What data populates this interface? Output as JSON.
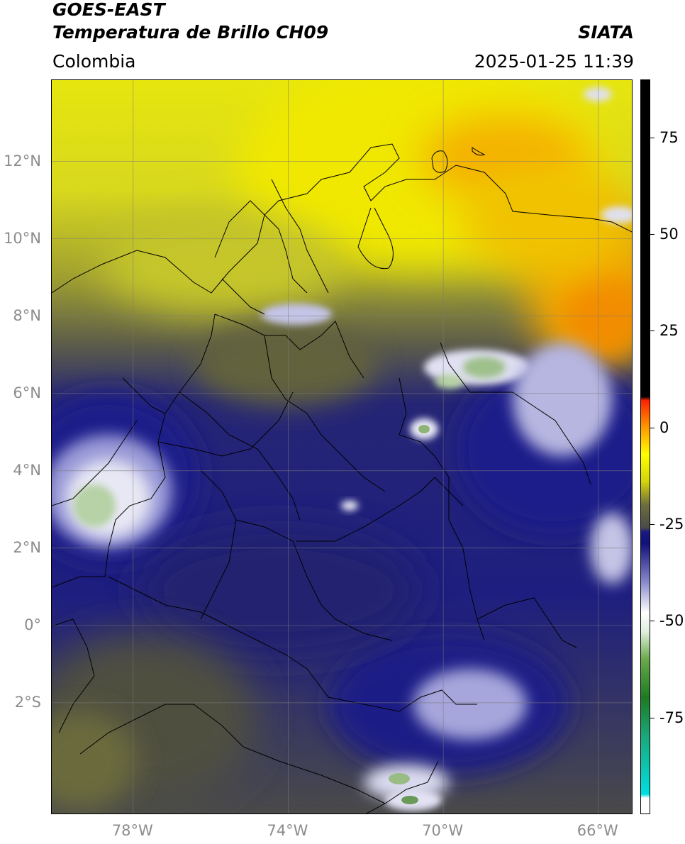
{
  "header": {
    "satellite": "GOES-EAST",
    "product": "Temperatura de Brillo CH09",
    "brand": "SIATA",
    "region": "Colombia",
    "timestamp": "2025-01-25 11:39"
  },
  "map": {
    "lat_labels": [
      "12°N",
      "10°N",
      "8°N",
      "6°N",
      "4°N",
      "2°N",
      "0°",
      "2°S"
    ],
    "lon_labels": [
      "78°W",
      "74°W",
      "70°W",
      "66°W"
    ],
    "lat_values": [
      12,
      10,
      8,
      6,
      4,
      2,
      0,
      -2
    ],
    "lon_values": [
      -78,
      -74,
      -70,
      -66
    ],
    "extent": {
      "lon_min": -80.1,
      "lon_max": -65.1,
      "lat_min": -4.9,
      "lat_max": 14.1
    }
  },
  "colorbar": {
    "labels": [
      "75",
      "50",
      "25",
      "0",
      "-25",
      "-50",
      "-75"
    ],
    "values": [
      75,
      50,
      25,
      0,
      -25,
      -50,
      -75
    ],
    "range": [
      -100,
      90
    ],
    "stops": [
      {
        "v": -100,
        "c": "#ffffff"
      },
      {
        "v": -96,
        "c": "#ffffff"
      },
      {
        "v": -95,
        "c": "#00e0e0"
      },
      {
        "v": -80,
        "c": "#1aa87a"
      },
      {
        "v": -70,
        "c": "#1d7a22"
      },
      {
        "v": -60,
        "c": "#6aaa4c"
      },
      {
        "v": -53,
        "c": "#dfeedd"
      },
      {
        "v": -48,
        "c": "#ffffff"
      },
      {
        "v": -40,
        "c": "#8888cc"
      },
      {
        "v": -30,
        "c": "#10107a"
      },
      {
        "v": -27,
        "c": "#1a1a85"
      },
      {
        "v": -26,
        "c": "#4a4a4a"
      },
      {
        "v": -20,
        "c": "#6e6e3c"
      },
      {
        "v": -14,
        "c": "#d4d40a"
      },
      {
        "v": -7,
        "c": "#ffff00"
      },
      {
        "v": 0,
        "c": "#ff9900"
      },
      {
        "v": 7,
        "c": "#ff2200"
      },
      {
        "v": 8,
        "c": "#000000"
      },
      {
        "v": 90,
        "c": "#000000"
      }
    ]
  }
}
